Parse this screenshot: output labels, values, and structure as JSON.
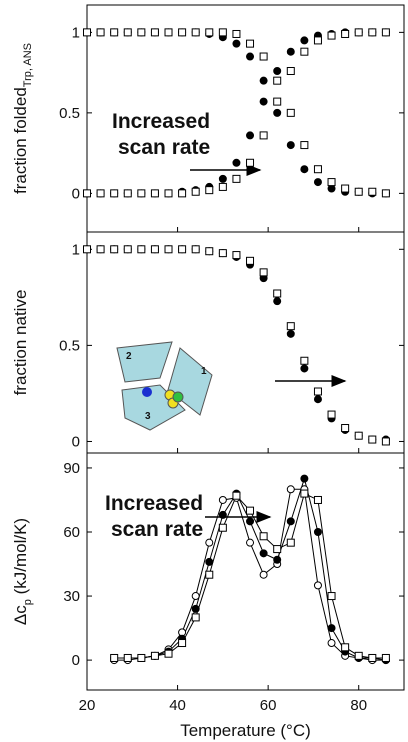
{
  "chart_data": [
    {
      "type": "scatter",
      "ylabel": [
        "fraction folded",
        "Trp, ANS"
      ],
      "x": [
        20,
        23,
        26,
        29,
        32,
        35,
        38,
        41,
        44,
        47,
        50,
        53,
        56,
        59,
        62,
        65,
        68,
        71,
        74,
        77,
        80,
        83,
        86
      ],
      "xlim": [
        20,
        90
      ],
      "ylim": [
        -0.24,
        1.17
      ],
      "yticks": [
        0,
        0.5,
        1
      ],
      "annotation": [
        "Increased",
        "scan rate"
      ],
      "series": [
        {
          "marker": "filled-circle",
          "color": "#000",
          "values": [
            1,
            1,
            1,
            1,
            1,
            1,
            1,
            1,
            1,
            0.99,
            0.97,
            0.93,
            0.85,
            0.7,
            0.5,
            0.3,
            0.15,
            0.07,
            0.03,
            0.01,
            0.01,
            0,
            0
          ]
        },
        {
          "marker": "open-square",
          "color": "#000",
          "values": [
            1,
            1,
            1,
            1,
            1,
            1,
            1,
            1,
            1,
            1,
            1,
            0.99,
            0.93,
            0.85,
            0.7,
            0.5,
            0.3,
            0.15,
            0.07,
            0.03,
            0.01,
            0.01,
            0
          ]
        },
        {
          "marker": "filled-circle",
          "color": "#000",
          "values": [
            0,
            0,
            0,
            0,
            0,
            0,
            0,
            0.01,
            0.02,
            0.04,
            0.09,
            0.19,
            0.36,
            0.57,
            0.76,
            0.88,
            0.95,
            0.98,
            0.99,
            1,
            1,
            1,
            1
          ]
        },
        {
          "marker": "open-square",
          "color": "#000",
          "values": [
            0,
            0,
            0,
            0,
            0,
            0,
            0,
            0,
            0.01,
            0.02,
            0.04,
            0.09,
            0.19,
            0.36,
            0.57,
            0.76,
            0.88,
            0.95,
            0.98,
            0.99,
            1,
            1,
            1
          ]
        }
      ]
    },
    {
      "type": "scatter",
      "ylabel": [
        "fraction native"
      ],
      "x": [
        20,
        23,
        26,
        29,
        32,
        35,
        38,
        41,
        44,
        47,
        50,
        53,
        56,
        59,
        62,
        65,
        68,
        71,
        74,
        77,
        80,
        83,
        86
      ],
      "xlim": [
        20,
        90
      ],
      "ylim": [
        -0.06,
        1.09
      ],
      "yticks": [
        0,
        0.5,
        1
      ],
      "inset_labels": [
        "1",
        "2",
        "3"
      ],
      "series": [
        {
          "marker": "filled-circle",
          "color": "#000",
          "values": [
            1,
            1,
            1,
            1,
            1,
            1,
            1,
            1,
            1,
            0.99,
            0.98,
            0.96,
            0.92,
            0.85,
            0.73,
            0.56,
            0.38,
            0.22,
            0.12,
            0.06,
            0.03,
            0.01,
            0.01
          ]
        },
        {
          "marker": "open-square",
          "color": "#000",
          "values": [
            1,
            1,
            1,
            1,
            1,
            1,
            1,
            1,
            1,
            0.99,
            0.98,
            0.97,
            0.94,
            0.88,
            0.77,
            0.6,
            0.42,
            0.26,
            0.14,
            0.07,
            0.03,
            0.01,
            0
          ]
        }
      ]
    },
    {
      "type": "line",
      "ylabel": [
        "Δc",
        "p",
        " (kJ/mol/K)"
      ],
      "xlabel": "Temperature (°C)",
      "x": [
        26,
        29,
        32,
        35,
        38,
        41,
        44,
        47,
        50,
        53,
        56,
        59,
        62,
        65,
        68,
        71,
        74,
        77,
        80,
        83,
        86
      ],
      "xlim": [
        20,
        90
      ],
      "xticks": [
        20,
        40,
        60,
        80
      ],
      "ylim": [
        -14,
        97
      ],
      "yticks": [
        0,
        30,
        60,
        90
      ],
      "annotation": [
        "Increased",
        "scan rate"
      ],
      "series": [
        {
          "marker": "open-circle",
          "color": "#000",
          "values": [
            0,
            0,
            1,
            2,
            5,
            13,
            30,
            55,
            75,
            76,
            55,
            40,
            45,
            80,
            80,
            35,
            8,
            2,
            1,
            0,
            0
          ]
        },
        {
          "marker": "filled-circle",
          "color": "#000",
          "values": [
            1,
            1,
            1,
            2,
            4,
            10,
            24,
            46,
            68,
            78,
            65,
            50,
            47,
            65,
            85,
            60,
            15,
            4,
            1,
            1,
            0
          ]
        },
        {
          "marker": "open-square",
          "color": "#000",
          "values": [
            1,
            1,
            1,
            2,
            3,
            8,
            20,
            40,
            62,
            77,
            70,
            58,
            52,
            55,
            78,
            75,
            30,
            6,
            2,
            1,
            1
          ]
        }
      ]
    }
  ]
}
